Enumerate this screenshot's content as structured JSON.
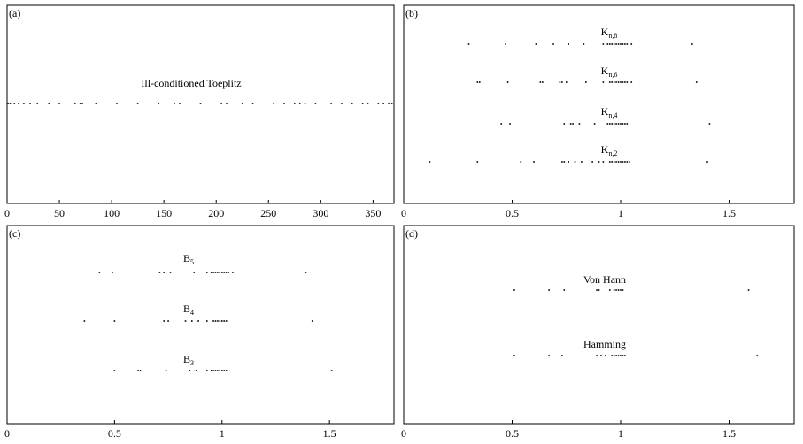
{
  "chart_data": [
    {
      "panel": "(a)",
      "type": "scatter",
      "xlim": [
        0,
        370
      ],
      "xticks": [
        "0",
        "50",
        "100",
        "150",
        "200",
        "250",
        "300",
        "350"
      ],
      "series": [
        {
          "name": "Ill-conditioned Toeplitz",
          "label_html": "Ill-conditioned Toeplitz",
          "x": [
            1,
            3,
            7,
            11,
            16,
            22,
            29,
            40,
            50,
            65,
            70,
            72,
            85,
            105,
            125,
            145,
            160,
            165,
            185,
            205,
            210,
            225,
            235,
            255,
            265,
            275,
            280,
            285,
            295,
            310,
            320,
            330,
            340,
            345,
            355,
            360,
            365,
            368
          ]
        }
      ]
    },
    {
      "panel": "(b)",
      "type": "scatter",
      "xlim": [
        0,
        1.8
      ],
      "xticks": [
        "0",
        "0.5",
        "1",
        "1.5"
      ],
      "series": [
        {
          "name": "Kn,8",
          "label_main": "K",
          "label_sub": "n,8",
          "x": [
            0.3,
            0.47,
            0.61,
            0.69,
            0.76,
            0.83,
            0.92,
            0.94,
            0.95,
            0.96,
            0.97,
            0.98,
            0.99,
            1.0,
            1.01,
            1.02,
            1.03,
            1.05,
            1.33
          ]
        },
        {
          "name": "Kn,6",
          "label_main": "K",
          "label_sub": "n,6",
          "x": [
            0.34,
            0.35,
            0.48,
            0.63,
            0.64,
            0.72,
            0.73,
            0.75,
            0.84,
            0.92,
            0.95,
            0.96,
            0.97,
            0.98,
            0.99,
            1.0,
            1.01,
            1.02,
            1.03,
            1.05,
            1.35
          ]
        },
        {
          "name": "Kn,4",
          "label_main": "K",
          "label_sub": "n,4",
          "x": [
            0.45,
            0.49,
            0.74,
            0.77,
            0.78,
            0.81,
            0.88,
            0.94,
            0.95,
            0.96,
            0.97,
            0.98,
            0.99,
            1.0,
            1.01,
            1.02,
            1.03,
            1.41
          ]
        },
        {
          "name": "Kn,2",
          "label_main": "K",
          "label_sub": "n,2",
          "x": [
            0.12,
            0.34,
            0.54,
            0.6,
            0.73,
            0.74,
            0.76,
            0.79,
            0.82,
            0.87,
            0.9,
            0.92,
            0.95,
            0.96,
            0.97,
            0.98,
            0.99,
            1.0,
            1.01,
            1.02,
            1.03,
            1.04,
            1.4
          ]
        }
      ]
    },
    {
      "panel": "(c)",
      "type": "scatter",
      "xlim": [
        0,
        1.8
      ],
      "xticks": [
        "0",
        "0.5",
        "1",
        "1.5"
      ],
      "series": [
        {
          "name": "B5",
          "label_main": "B",
          "label_sub": "5",
          "x": [
            0.43,
            0.49,
            0.71,
            0.73,
            0.76,
            0.87,
            0.93,
            0.95,
            0.96,
            0.97,
            0.98,
            0.99,
            1.0,
            1.01,
            1.02,
            1.03,
            1.05,
            1.39
          ]
        },
        {
          "name": "B4",
          "label_main": "B",
          "label_sub": "4",
          "x": [
            0.36,
            0.5,
            0.73,
            0.75,
            0.83,
            0.86,
            0.89,
            0.93,
            0.96,
            0.97,
            0.98,
            0.99,
            1.0,
            1.01,
            1.02,
            1.42
          ]
        },
        {
          "name": "B3",
          "label_main": "B",
          "label_sub": "3",
          "x": [
            0.5,
            0.61,
            0.62,
            0.74,
            0.85,
            0.88,
            0.93,
            0.95,
            0.96,
            0.97,
            0.98,
            0.99,
            1.0,
            1.01,
            1.02,
            1.51
          ]
        }
      ]
    },
    {
      "panel": "(d)",
      "type": "scatter",
      "xlim": [
        0,
        1.8
      ],
      "xticks": [
        "0",
        "0.5",
        "1",
        "1.5"
      ],
      "series": [
        {
          "name": "Von Hann",
          "label_html": "Von Hann",
          "x": [
            0.51,
            0.67,
            0.74,
            0.89,
            0.9,
            0.95,
            0.97,
            0.98,
            0.99,
            1.0,
            1.01,
            1.59
          ]
        },
        {
          "name": "Hamming",
          "label_html": "Hamming",
          "x": [
            0.51,
            0.67,
            0.73,
            0.89,
            0.91,
            0.93,
            0.96,
            0.97,
            0.98,
            0.99,
            1.0,
            1.01,
            1.02,
            1.63
          ]
        }
      ]
    }
  ]
}
